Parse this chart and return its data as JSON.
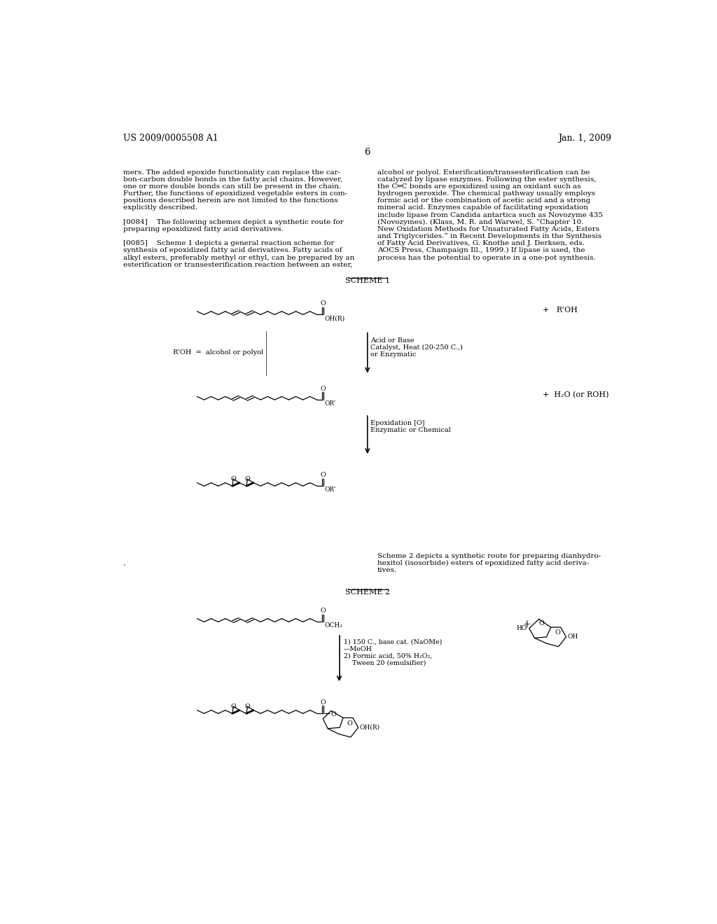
{
  "bg_color": "#ffffff",
  "header_left": "US 2009/0005508 A1",
  "header_right": "Jan. 1, 2009",
  "page_number": "6",
  "left_col_lines": [
    "mers. The added epoxide functionality can replace the car-",
    "bon-carbon double bonds in the fatty acid chains. However,",
    "one or more double bonds can still be present in the chain.",
    "Further, the functions of epoxidized vegetable esters in com-",
    "positions described herein are not limited to the functions",
    "explicitly described.",
    " ",
    "[0084]    The following schemes depict a synthetic route for",
    "preparing epoxidized fatty acid derivatives.",
    " ",
    "[0085]    Scheme 1 depicts a general reaction scheme for",
    "synthesis of epoxidized fatty acid derivatives. Fatty acids of",
    "alkyl esters, preferably methyl or ethyl, can be prepared by an",
    "esterification or transesterification reaction between an ester,"
  ],
  "right_col_lines": [
    "alcohol or polyol. Esterification/transesterification can be",
    "catalyzed by lipase enzymes. Following the ester synthesis,",
    "the C═C bonds are epoxidized using an oxidant such as",
    "hydrogen peroxide. The chemical pathway usually employs",
    "formic acid or the combination of acetic acid and a strong",
    "mineral acid. Enzymes capable of facilitating epoxidation",
    "include lipase from Candida antartica such as Novozyme 435",
    "(Novozymes). (Klass, M. R. and Warwel, S. “Chapter 10.",
    "New Oxidation Methods for Unsaturated Fatty Acids, Esters",
    "and Triglycerides.” in Recent Developments in the Synthesis",
    "of Fatty Acid Derivatives, G. Knothe and J. Derksen, eds.",
    "AOCS Press, Champaign Ill., 1999.) If lipase is used, the",
    "process has the potential to operate in a one-pot synthesis."
  ],
  "scheme2_desc": [
    "Scheme 2 depicts a synthetic route for preparing dianhydro-",
    "hexitol (isosorbide) esters of epoxidized fatty acid deriva-",
    "tives."
  ],
  "step1_arrow_labels": [
    "Acid or Base",
    "Catalyst, Heat (20-250 C.,)",
    "or Enzymatic"
  ],
  "step1_left_label": "R’OH  =  alcohol or polyol",
  "step2_arrow_labels": [
    "Epoxidation [O]",
    "Enzymatic or Chemical"
  ],
  "step3_arrow_labels": [
    "1) 150 C., base cat. (NaOMe)",
    "—MeOH",
    "2) Formic acid, 50% H₂O₂,",
    "    Tween 20 (emulsifier)"
  ]
}
